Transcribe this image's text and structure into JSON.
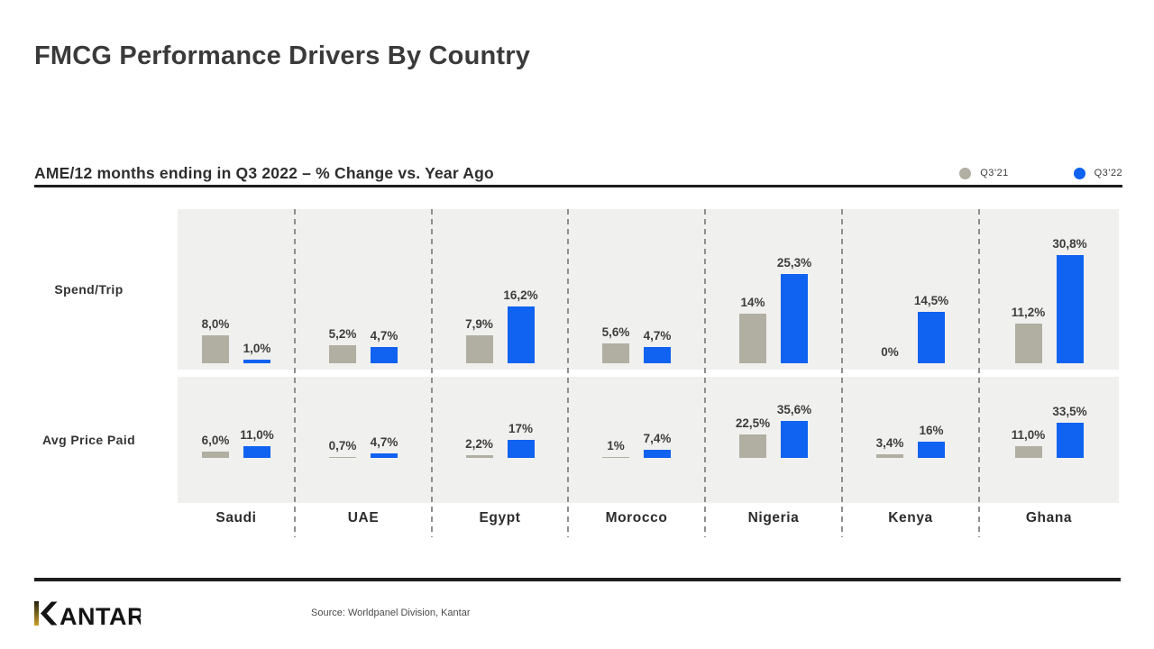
{
  "page": {
    "title": "FMCG Performance Drivers By Country"
  },
  "chart_data": {
    "type": "bar",
    "title": "FMCG Performance Drivers By Country",
    "subtitle": "AME/12 months ending in Q3 2022 – % Change vs. Year Ago",
    "unit": "% change vs. year ago",
    "grid": false,
    "legend_position": "top-right",
    "background_color": "#f0f0ee",
    "categories": [
      "Saudi",
      "UAE",
      "Egypt",
      "Morocco",
      "Nigeria",
      "Kenya",
      "Ghana"
    ],
    "rows": [
      {
        "label": "Spend/Trip",
        "series": [
          {
            "name": "Q3’21",
            "color": "#b1aea2",
            "values": [
              8.0,
              5.2,
              7.9,
              5.6,
              14,
              0,
              11.2
            ],
            "display_labels": [
              "8,0%",
              "5,2%",
              "7,9%",
              "5,6%",
              "14%",
              "0%",
              "11,2%"
            ]
          },
          {
            "name": "Q3’22",
            "color": "#1062f0",
            "values": [
              1.0,
              4.7,
              16.2,
              4.7,
              25.3,
              14.5,
              30.8
            ],
            "display_labels": [
              "1,0%",
              "4,7%",
              "16,2%",
              "4,7%",
              "25,3%",
              "14,5%",
              "30,8%"
            ]
          }
        ]
      },
      {
        "label": "Avg Price Paid",
        "series": [
          {
            "name": "Q3’21",
            "color": "#b1aea2",
            "values": [
              6.0,
              0.7,
              2.2,
              1,
              22.5,
              3.4,
              11.0
            ],
            "display_labels": [
              "6,0%",
              "0,7%",
              "2,2%",
              "1%",
              "22,5%",
              "3,4%",
              "11,0%"
            ]
          },
          {
            "name": "Q3’22",
            "color": "#1062f0",
            "values": [
              11.0,
              4.7,
              17,
              7.4,
              35.6,
              16,
              33.5
            ],
            "display_labels": [
              "11,0%",
              "4,7%",
              "17%",
              "7,4%",
              "35,6%",
              "16%",
              "33,5%"
            ]
          }
        ]
      }
    ]
  },
  "footer": {
    "logo_text": "KANTAR",
    "source": "Source: Worldpanel Division, Kantar"
  }
}
